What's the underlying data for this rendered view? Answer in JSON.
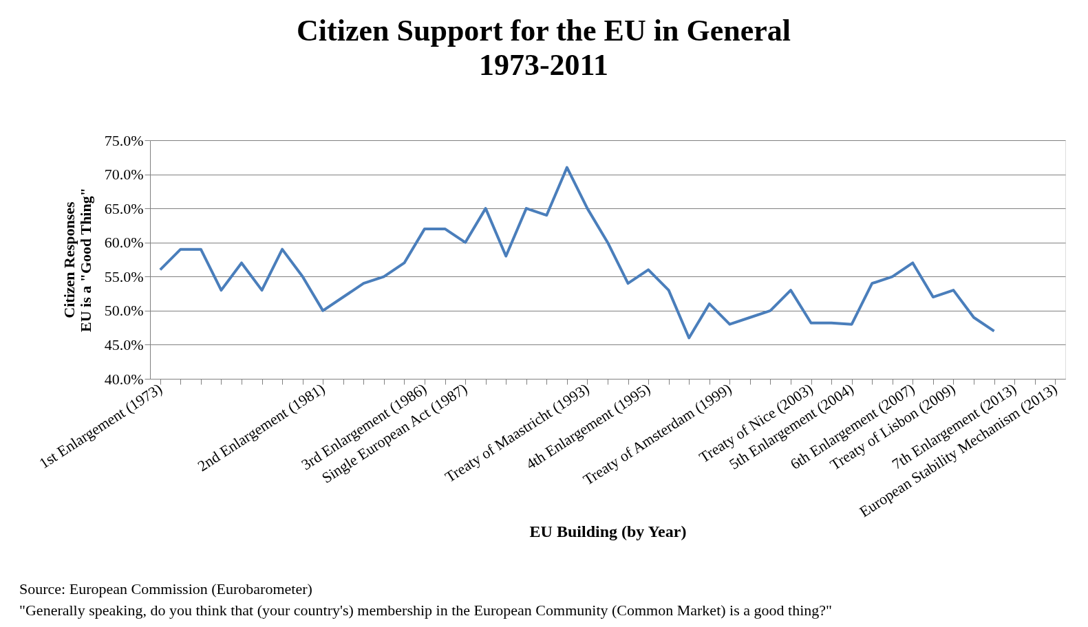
{
  "chart_data": {
    "type": "line",
    "title": "Citizen Support for the EU in General\n1973-2011",
    "xlabel": "EU Building (by Year)",
    "ylabel": "Citizen Responses\nEU is a \"Good Thing\"",
    "categories": [
      "1st Enlargement (1973)",
      null,
      null,
      null,
      null,
      null,
      null,
      null,
      "2nd Enlargement (1981)",
      null,
      null,
      null,
      null,
      "3rd Enlargement (1986)",
      null,
      "Single European Act (1987)",
      null,
      null,
      null,
      null,
      null,
      "Treaty of Maastricht (1993)",
      null,
      null,
      "4th Enlargement (1995)",
      null,
      null,
      null,
      "Treaty of Amsterdam (1999)",
      null,
      null,
      null,
      "Treaty of Nice (2003)",
      null,
      "5th Enlargement (2004)",
      null,
      null,
      "6th Enlargement (2007)",
      null,
      "Treaty of Lisbon (2009)",
      null,
      null,
      "7th Enlargement (2013)",
      null,
      "European Stability Mechanism (2013)"
    ],
    "series": [
      {
        "color": "#4a7ebb",
        "values": [
          56,
          59,
          59,
          53,
          57,
          53,
          59,
          55,
          50,
          52,
          54,
          55,
          57,
          62,
          62,
          60,
          65,
          58,
          65,
          64,
          71,
          65,
          60,
          54,
          56,
          53,
          46,
          51,
          48,
          49,
          50,
          53,
          48.2,
          48.2,
          48,
          54,
          55,
          57,
          52,
          53,
          49,
          47,
          null,
          null,
          null
        ]
      }
    ],
    "ylim": [
      40,
      75
    ],
    "yticks": [
      {
        "value": 40,
        "label": "40.0%"
      },
      {
        "value": 45,
        "label": "45.0%"
      },
      {
        "value": 50,
        "label": "50.0%"
      },
      {
        "value": 55,
        "label": "55.0%"
      },
      {
        "value": 60,
        "label": "60.0%"
      },
      {
        "value": 65,
        "label": "65.0%"
      },
      {
        "value": 70,
        "label": "70.0%"
      },
      {
        "value": 75,
        "label": "75.0%"
      }
    ],
    "grid": "y",
    "marker": "none",
    "line_style": "solid",
    "annotations": [
      "Source: European Commission (Eurobarometer)",
      "\"Generally speaking, do you think that (your country's) membership in the European Community (Common Market) is a good thing?\""
    ]
  }
}
